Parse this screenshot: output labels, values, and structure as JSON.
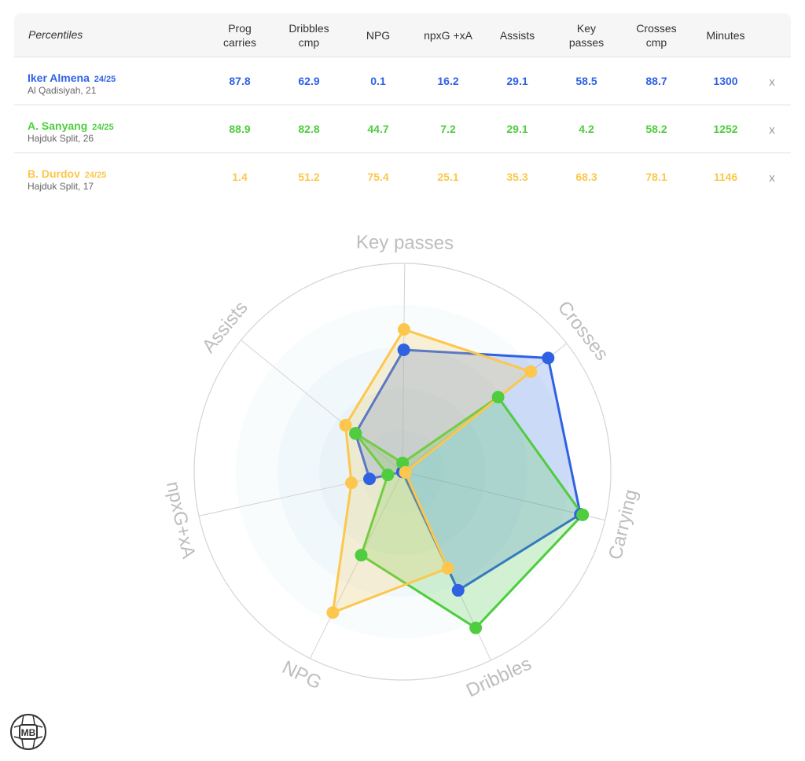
{
  "table": {
    "header_title": "Percentiles",
    "columns": [
      "Prog\ncarries",
      "Dribbles\ncmp",
      "NPG",
      "npxG +xA",
      "Assists",
      "Key\npasses",
      "Crosses\ncmp",
      "Minutes"
    ],
    "remove_label": "x",
    "players": [
      {
        "name": "Iker Almena",
        "season": "24/25",
        "club": "Al Qadisiyah, 21",
        "color": "#2f62e3",
        "values": [
          "87.8",
          "62.9",
          "0.1",
          "16.2",
          "29.1",
          "58.5",
          "88.7",
          "1300"
        ]
      },
      {
        "name": "A. Sanyang",
        "season": "24/25",
        "club": "Hajduk Split, 26",
        "color": "#4fcd3f",
        "values": [
          "88.9",
          "82.8",
          "44.7",
          "7.2",
          "29.1",
          "4.2",
          "58.2",
          "1252"
        ]
      },
      {
        "name": "B. Durdov",
        "season": "24/25",
        "club": "Hajduk Split, 17",
        "color": "#fcc74c",
        "values": [
          "1.4",
          "51.2",
          "75.4",
          "25.1",
          "35.3",
          "68.3",
          "78.1",
          "1146"
        ]
      }
    ]
  },
  "chart_data": {
    "type": "radar",
    "axes": [
      "Key passes",
      "Crosses",
      "Carrying",
      "Dribbles",
      "NPG",
      "npxG+xA",
      "Assists"
    ],
    "range": [
      0,
      100
    ],
    "series": [
      {
        "name": "Iker Almena",
        "color": "#2f62e3",
        "values": [
          58.5,
          88.7,
          87.8,
          62.9,
          0.1,
          16.2,
          29.1
        ]
      },
      {
        "name": "A. Sanyang",
        "color": "#4fcd3f",
        "values": [
          4.2,
          58.2,
          88.9,
          82.8,
          44.7,
          7.2,
          29.1
        ]
      },
      {
        "name": "B. Durdov",
        "color": "#fcc74c",
        "values": [
          68.3,
          78.1,
          1.4,
          51.2,
          75.4,
          25.1,
          35.3
        ]
      }
    ]
  },
  "logo": {
    "text": "MB"
  }
}
